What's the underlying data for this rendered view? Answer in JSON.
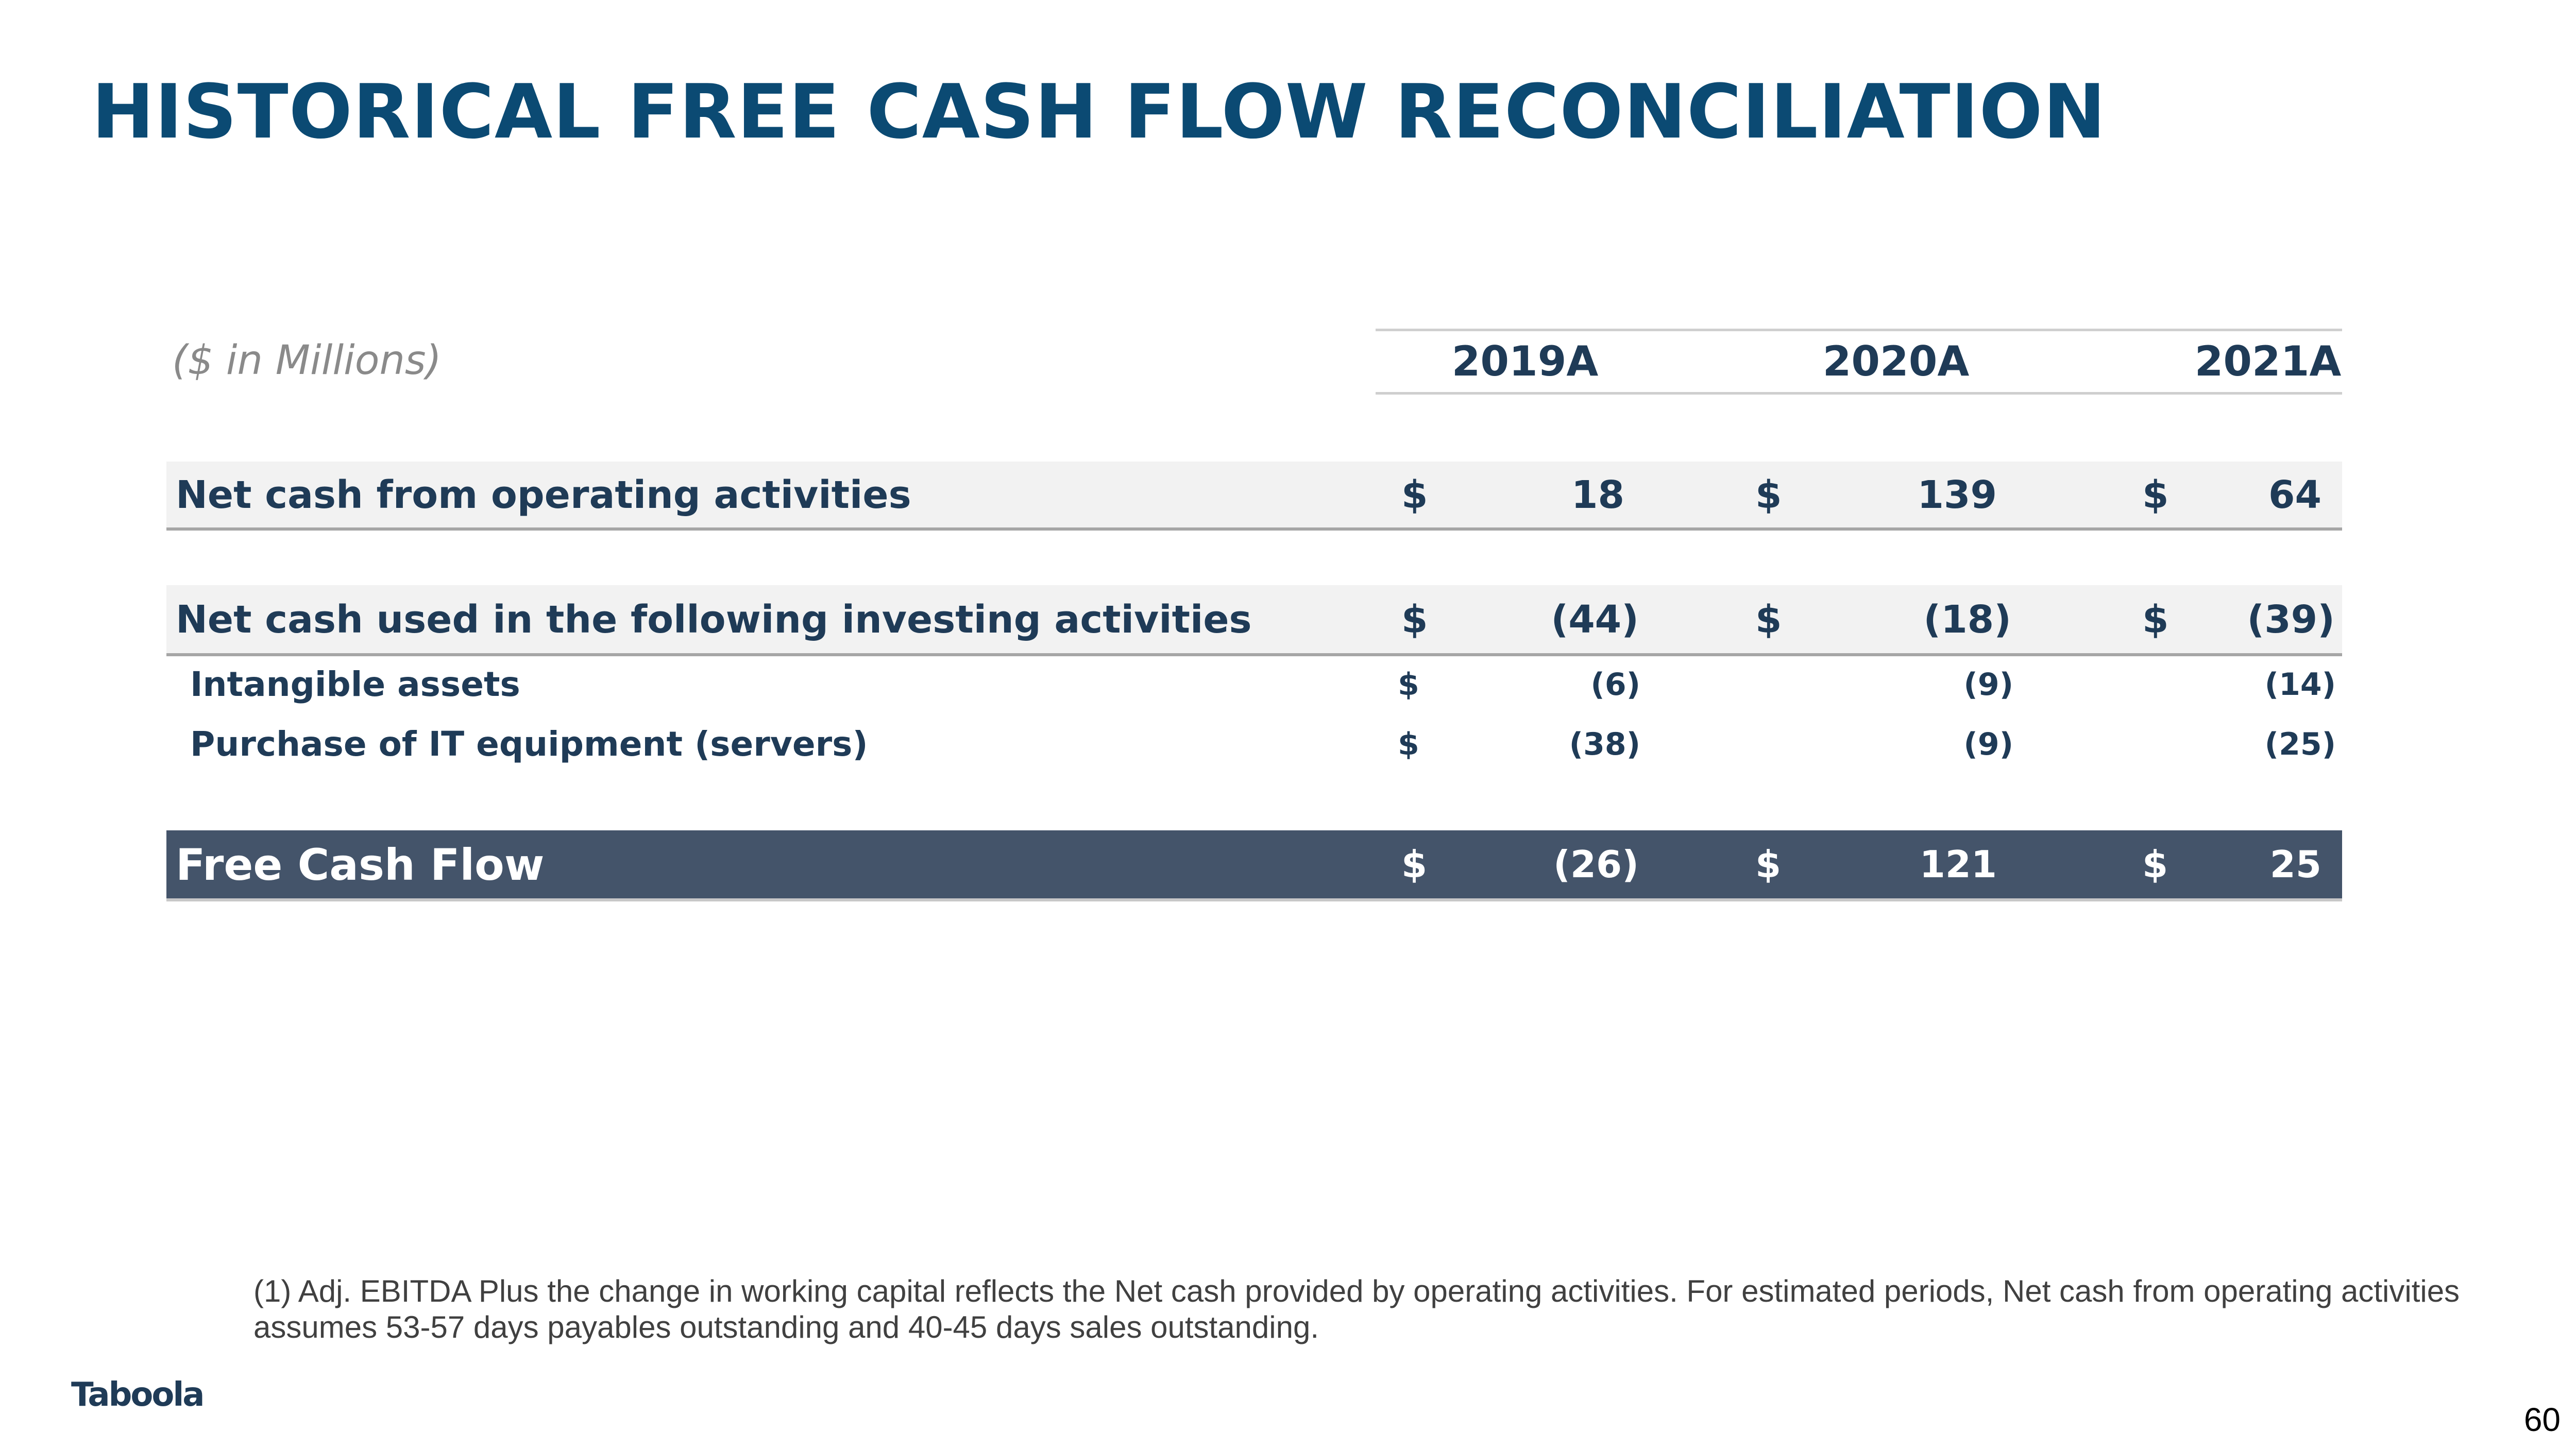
{
  "slide": {
    "title": "HISTORICAL FREE CASH FLOW RECONCILIATION",
    "units": "($ in Millions)",
    "page_number": "60",
    "logo_text": "Taboola"
  },
  "table": {
    "years": [
      "2019A",
      "2020A",
      "2021A"
    ],
    "rows": [
      {
        "label": "Net cash from operating activities",
        "values": [
          {
            "currency": "$",
            "amount": "18"
          },
          {
            "currency": "$",
            "amount": "139"
          },
          {
            "currency": "$",
            "amount": "64"
          }
        ]
      },
      {
        "label": "Net cash used in the following investing activities",
        "values": [
          {
            "currency": "$",
            "amount": "(44)"
          },
          {
            "currency": "$",
            "amount": "(18)"
          },
          {
            "currency": "$",
            "amount": "(39)"
          }
        ]
      },
      {
        "label": "Intangible assets",
        "values": [
          {
            "currency": "$",
            "amount": "(6)"
          },
          {
            "currency": "",
            "amount": "(9)"
          },
          {
            "currency": "",
            "amount": "(14)"
          }
        ]
      },
      {
        "label": "Purchase of IT equipment (servers)",
        "values": [
          {
            "currency": "$",
            "amount": "(38)"
          },
          {
            "currency": "",
            "amount": "(9)"
          },
          {
            "currency": "",
            "amount": "(25)"
          }
        ]
      },
      {
        "label": "Free Cash Flow",
        "values": [
          {
            "currency": "$",
            "amount": "(26)"
          },
          {
            "currency": "$",
            "amount": "121"
          },
          {
            "currency": "$",
            "amount": "25"
          }
        ]
      }
    ]
  },
  "footnote": "(1) Adj. EBITDA Plus the change in working capital reflects the Net cash provided by operating activities. For estimated periods, Net cash from operating activities assumes 53-57 days payables outstanding and 40-45 days sales outstanding."
}
